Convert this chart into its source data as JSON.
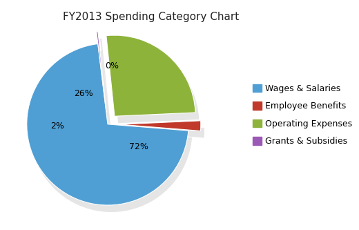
{
  "title": "FY2013 Spending Category Chart",
  "labels": [
    "Wages & Salaries",
    "Employee Benefits",
    "Operating Expenses",
    "Grants & Subsidies"
  ],
  "values": [
    72,
    2,
    26,
    0.3
  ],
  "display_pcts": [
    "72%",
    "2%",
    "26%",
    "0%"
  ],
  "colors": [
    "#4f9fd4",
    "#c0392b",
    "#8db33a",
    "#9b59b6"
  ],
  "explode": [
    0.0,
    0.15,
    0.13,
    0.15
  ],
  "startangle": 97,
  "title_fontsize": 11,
  "legend_fontsize": 9,
  "pct_fontsize": 9,
  "background_color": "#ffffff"
}
